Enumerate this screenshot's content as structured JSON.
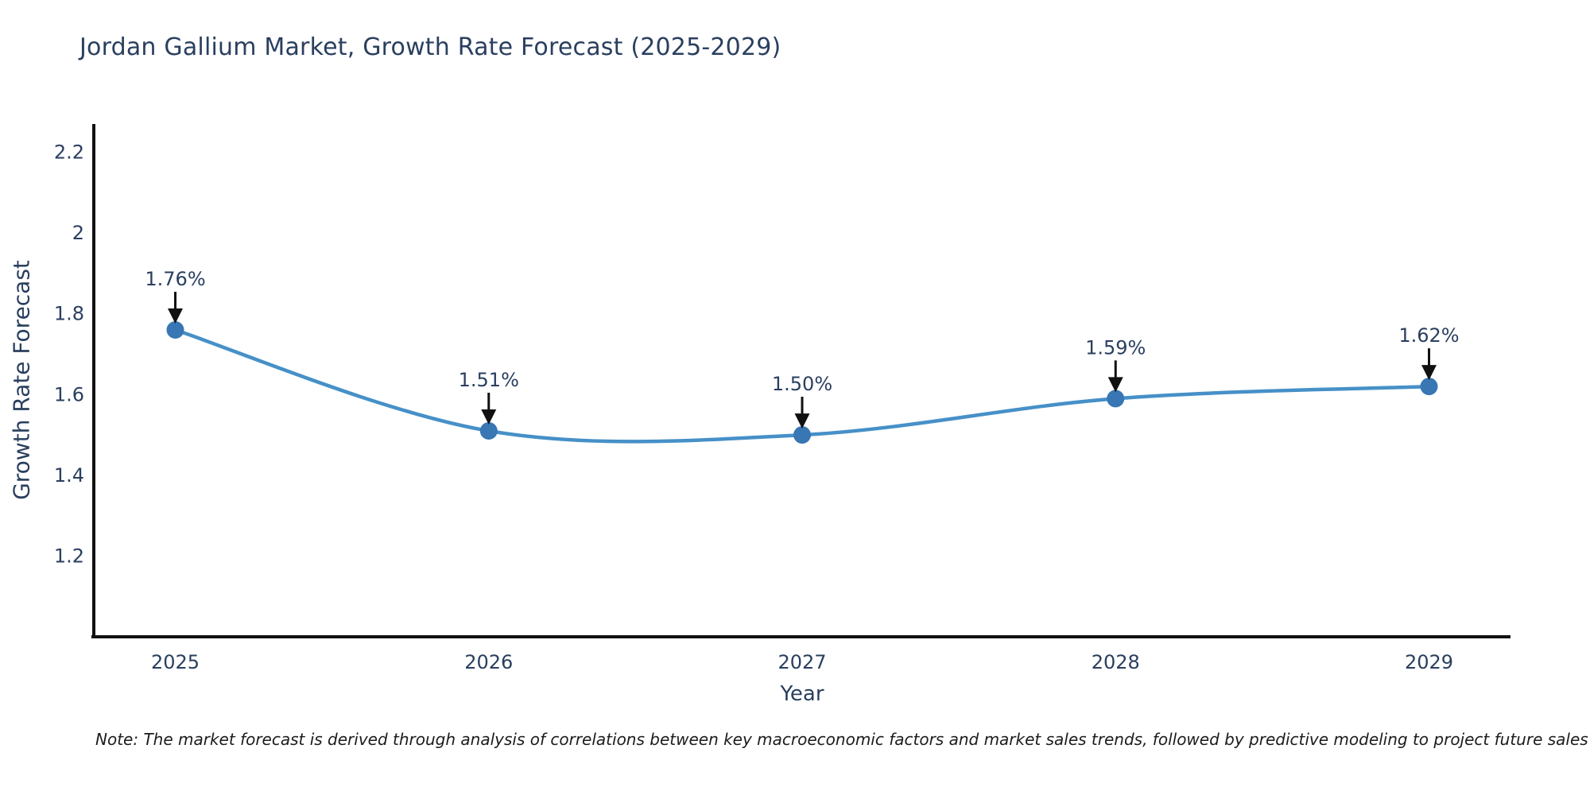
{
  "title": "Jordan Gallium Market, Growth Rate Forecast (2025-2029)",
  "note": "Note: The market forecast is derived through analysis of correlations between key macroeconomic factors and market sales trends, followed by predictive modeling to project future sales",
  "colors": {
    "text": "#2a3f5f",
    "axis": "#111111",
    "line": "#4690c8",
    "marker": "#3876b4",
    "arrow": "#111111",
    "background": "#ffffff"
  },
  "chart_data": {
    "type": "line",
    "title": "Jordan Gallium Market, Growth Rate Forecast (2025-2029)",
    "x": [
      2025,
      2026,
      2027,
      2028,
      2029
    ],
    "values": [
      1.76,
      1.51,
      1.5,
      1.59,
      1.62
    ],
    "point_labels": [
      "1.76%",
      "1.51%",
      "1.50%",
      "1.59%",
      "1.62%"
    ],
    "series_name": "Growth Rate Forecast",
    "xlabel": "Year",
    "ylabel": "Growth Rate Forecast",
    "xlim": [
      2024.74,
      2029.26
    ],
    "ylim": [
      1.0,
      2.27
    ],
    "yticks": {
      "values": [
        1.2,
        1.4,
        1.6,
        1.8,
        2.0,
        2.2
      ],
      "labels": [
        "1.2",
        "1.4",
        "1.6",
        "1.8",
        "2",
        "2.2"
      ]
    },
    "xticks": {
      "values": [
        2025,
        2026,
        2027,
        2028,
        2029
      ],
      "labels": [
        "2025",
        "2026",
        "2027",
        "2028",
        "2029"
      ]
    },
    "grid": false,
    "legend": "none",
    "line_shape": "spline",
    "markers": true,
    "annotations": "percentage value label with downward arrow above each data point"
  }
}
